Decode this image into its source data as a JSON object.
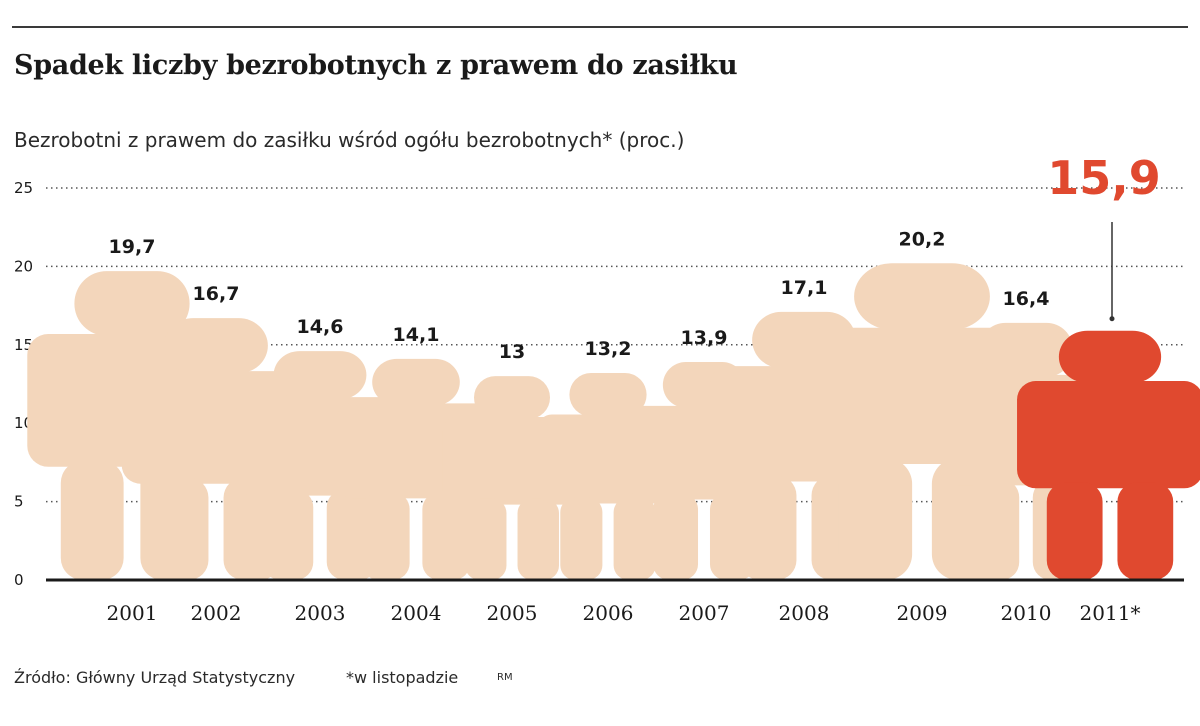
{
  "header": {
    "title": "Spadek liczby bezrobotnych z prawem do zasiłku",
    "subtitle": "Bezrobotni z prawem do zasiłku wśród ogółu bezrobotnych* (proc.)"
  },
  "footer": {
    "source": "Źródło: Główny Urząd Statystyczny",
    "note": "*w listopadzie",
    "credit": "RM"
  },
  "colors": {
    "figure": "#f3d6bb",
    "highlight": "#e0492f",
    "axis": "#1a1a1a",
    "grid": "#555555"
  },
  "chart_data": {
    "type": "bar",
    "categories": [
      "2001",
      "2002",
      "2003",
      "2004",
      "2005",
      "2006",
      "2007",
      "2008",
      "2009",
      "2010",
      "2011*"
    ],
    "values": [
      19.7,
      16.7,
      14.6,
      14.1,
      13,
      13.2,
      13.9,
      17.1,
      20.2,
      16.4,
      15.9
    ],
    "value_labels": [
      "19,7",
      "16,7",
      "14,6",
      "14,1",
      "13",
      "13,2",
      "13,9",
      "17,1",
      "20,2",
      "16,4",
      "15,9"
    ],
    "highlight_index": 10,
    "ylim": [
      0,
      25
    ],
    "yticks": [
      "0",
      "5",
      "10",
      "15",
      "20",
      "25"
    ],
    "ytick_values": [
      0,
      5,
      10,
      15,
      20,
      25
    ],
    "grid": true,
    "mark_shape": "human-silhouette"
  }
}
